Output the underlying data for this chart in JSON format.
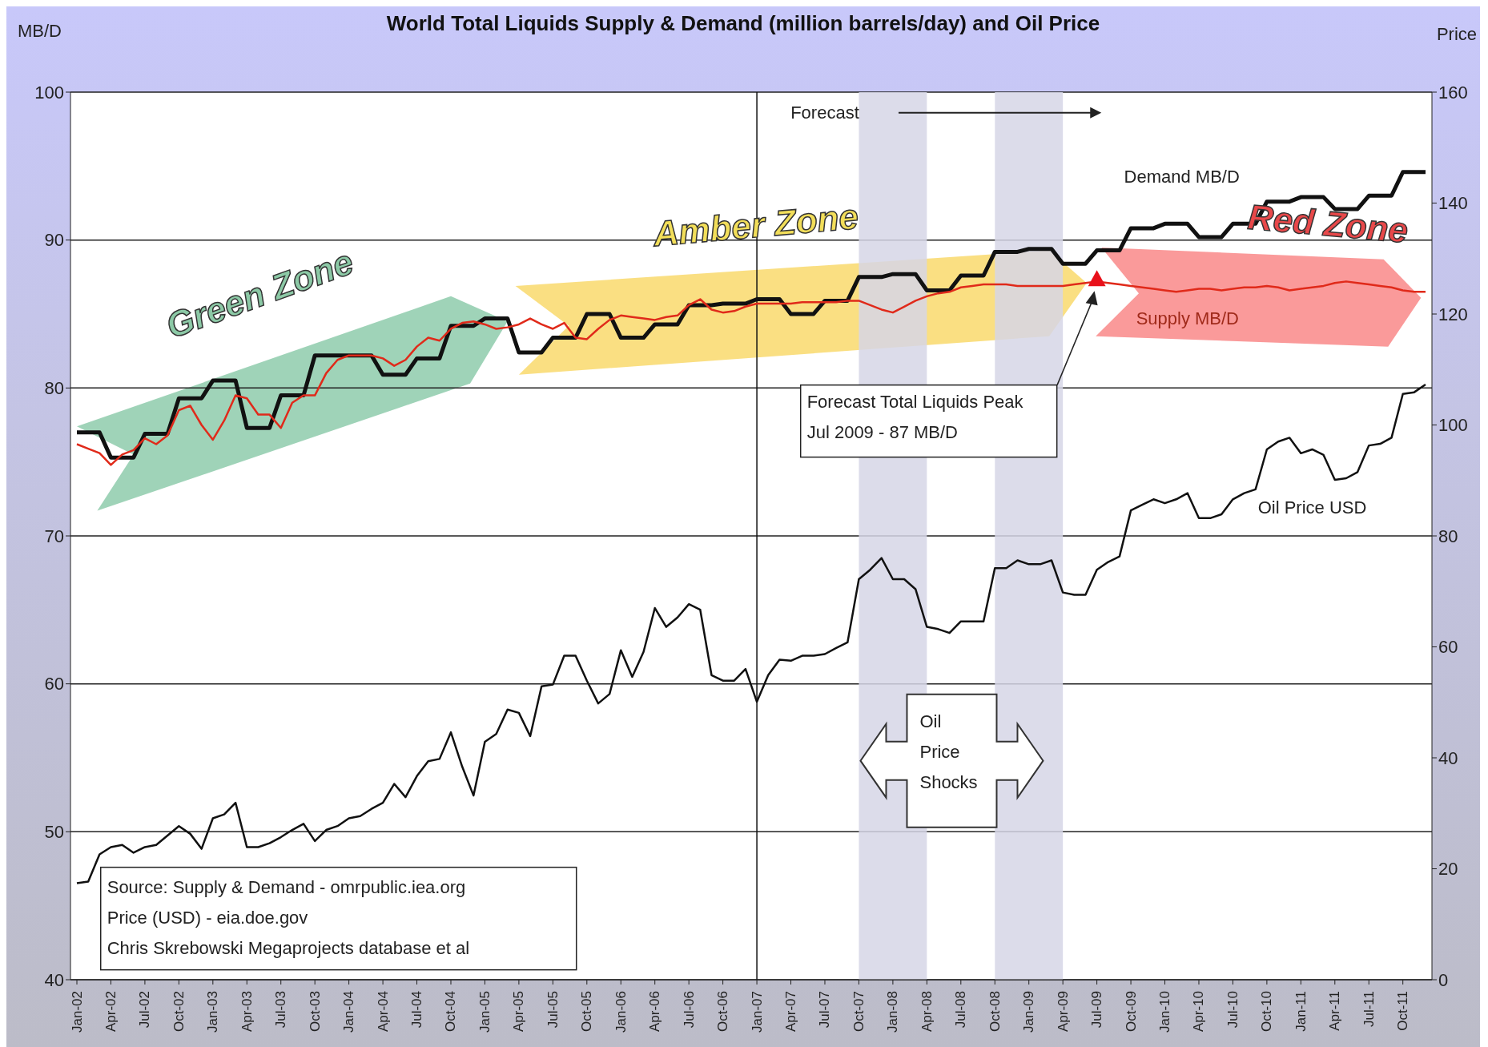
{
  "chart_data": {
    "type": "line",
    "title": "World Total Liquids Supply & Demand (million barrels/day) and Oil Price",
    "ylabel": "MB/D",
    "y2label": "Price",
    "categories": [
      "Jan-02",
      null,
      null,
      "Apr-02",
      null,
      null,
      "Jul-02",
      null,
      null,
      "Oct-02",
      null,
      null,
      "Jan-03",
      null,
      null,
      "Apr-03",
      null,
      null,
      "Jul-03",
      null,
      null,
      "Oct-03",
      null,
      null,
      "Jan-04",
      null,
      null,
      "Apr-04",
      null,
      null,
      "Jul-04",
      null,
      null,
      "Oct-04",
      null,
      null,
      "Jan-05",
      null,
      null,
      "Apr-05",
      null,
      null,
      "Jul-05",
      null,
      null,
      "Oct-05",
      null,
      null,
      "Jan-06",
      null,
      null,
      "Apr-06",
      null,
      null,
      "Jul-06",
      null,
      null,
      "Oct-06",
      null,
      null,
      "Jan-07",
      null,
      null,
      "Apr-07",
      null,
      null,
      "Jul-07",
      null,
      null,
      "Oct-07",
      null,
      null,
      "Jan-08",
      null,
      null,
      "Apr-08",
      null,
      null,
      "Jul-08",
      null,
      null,
      "Oct-08",
      null,
      null,
      "Jan-09",
      null,
      null,
      "Apr-09",
      null,
      null,
      "Jul-09",
      null,
      null,
      "Oct-09",
      null,
      null,
      "Jan-10",
      null,
      null,
      "Apr-10",
      null,
      null,
      "Jul-10",
      null,
      null,
      "Oct-10",
      null,
      null,
      "Jan-11",
      null,
      null,
      "Apr-11",
      null,
      null,
      "Jul-11",
      null,
      null,
      "Oct-11",
      null,
      null
    ],
    "series": [
      {
        "name": "Demand MB/D",
        "color": "#111111",
        "values": [
          77.0,
          77.0,
          77.0,
          75.3,
          75.3,
          75.3,
          76.9,
          76.9,
          76.9,
          79.3,
          79.3,
          79.3,
          80.5,
          80.5,
          80.5,
          77.3,
          77.3,
          77.3,
          79.5,
          79.5,
          79.5,
          82.2,
          82.2,
          82.2,
          82.2,
          82.2,
          82.2,
          80.9,
          80.9,
          80.9,
          82.0,
          82.0,
          82.0,
          84.2,
          84.2,
          84.2,
          84.7,
          84.7,
          84.7,
          82.4,
          82.4,
          82.4,
          83.4,
          83.4,
          83.4,
          85.0,
          85.0,
          85.0,
          83.4,
          83.4,
          83.4,
          84.3,
          84.3,
          84.3,
          85.6,
          85.6,
          85.6,
          85.7,
          85.7,
          85.7,
          86.0,
          86.0,
          86.0,
          85.0,
          85.0,
          85.0,
          85.9,
          85.9,
          85.9,
          87.5,
          87.5,
          87.5,
          87.7,
          87.7,
          87.7,
          86.6,
          86.6,
          86.6,
          87.6,
          87.6,
          87.6,
          89.2,
          89.2,
          89.2,
          89.4,
          89.4,
          89.4,
          88.4,
          88.4,
          88.4,
          89.3,
          89.3,
          89.3,
          90.8,
          90.8,
          90.8,
          91.1,
          91.1,
          91.1,
          90.2,
          90.2,
          90.2,
          91.1,
          91.1,
          91.1,
          92.6,
          92.6,
          92.6,
          92.9,
          92.9,
          92.9,
          92.1,
          92.1,
          92.1,
          93.0,
          93.0,
          93.0,
          94.6,
          94.6,
          94.6
        ]
      },
      {
        "name": "Supply MB/D",
        "color": "#e02a1a",
        "values": [
          76.2,
          75.9,
          75.6,
          74.8,
          75.5,
          75.8,
          76.6,
          76.2,
          76.8,
          78.5,
          78.8,
          77.5,
          76.5,
          77.8,
          79.5,
          79.3,
          78.2,
          78.2,
          77.3,
          79.0,
          79.5,
          79.5,
          81.0,
          81.9,
          82.2,
          82.2,
          82.2,
          82.0,
          81.5,
          81.9,
          82.8,
          83.4,
          83.2,
          84.0,
          84.4,
          84.5,
          84.3,
          84.0,
          84.1,
          84.3,
          84.7,
          84.3,
          84.0,
          84.4,
          83.4,
          83.3,
          84.0,
          84.6,
          84.9,
          84.8,
          84.7,
          84.6,
          84.8,
          84.9,
          85.6,
          86.0,
          85.3,
          85.1,
          85.2,
          85.5,
          85.7,
          85.7,
          85.7,
          85.7,
          85.8,
          85.8,
          85.8,
          85.8,
          85.9,
          85.9,
          85.6,
          85.3,
          85.1,
          85.5,
          85.9,
          86.2,
          86.4,
          86.5,
          86.8,
          86.9,
          87.0,
          87.0,
          87.0,
          86.9,
          86.9,
          86.9,
          86.9,
          86.9,
          87.0,
          87.1,
          87.2,
          87.1,
          87.0,
          86.9,
          86.8,
          86.7,
          86.6,
          86.5,
          86.6,
          86.7,
          86.7,
          86.6,
          86.7,
          86.8,
          86.8,
          86.9,
          86.8,
          86.6,
          86.7,
          86.8,
          86.9,
          87.1,
          87.2,
          87.1,
          87.0,
          86.9,
          86.8,
          86.6,
          86.5,
          86.5
        ]
      },
      {
        "name": "Oil Price USD",
        "color": "#111111",
        "axis": "y2",
        "values": [
          17.4,
          17.7,
          22.6,
          23.9,
          24.3,
          22.9,
          23.9,
          24.3,
          26.0,
          27.7,
          26.3,
          23.6,
          29.1,
          29.8,
          31.9,
          23.9,
          23.9,
          24.6,
          25.7,
          27.0,
          28.1,
          25.0,
          27.0,
          27.7,
          29.1,
          29.5,
          30.8,
          31.9,
          35.3,
          32.9,
          36.7,
          39.4,
          39.8,
          44.6,
          38.4,
          33.2,
          42.9,
          44.3,
          48.7,
          48.1,
          43.9,
          52.9,
          53.2,
          58.4,
          58.4,
          53.9,
          49.8,
          51.5,
          59.4,
          54.6,
          59.1,
          67.0,
          63.6,
          65.3,
          67.7,
          66.7,
          54.9,
          53.9,
          53.9,
          56.0,
          50.1,
          54.9,
          57.7,
          57.5,
          58.4,
          58.4,
          58.7,
          59.8,
          60.8,
          72.2,
          73.9,
          76.0,
          72.2,
          72.2,
          70.4,
          63.6,
          63.2,
          62.5,
          64.6,
          64.6,
          64.6,
          74.2,
          74.2,
          75.6,
          74.9,
          74.9,
          75.6,
          69.8,
          69.4,
          69.4,
          73.9,
          75.3,
          76.3,
          84.6,
          85.6,
          86.6,
          85.9,
          86.6,
          87.7,
          83.2,
          83.2,
          83.9,
          86.6,
          87.7,
          88.4,
          95.6,
          97.0,
          97.7,
          94.9,
          95.6,
          94.6,
          90.1,
          90.4,
          91.5,
          96.3,
          96.6,
          97.7,
          105.6,
          105.9,
          107.3
        ]
      }
    ],
    "ylim": [
      40,
      100
    ],
    "yticks": [
      40,
      50,
      60,
      70,
      80,
      90,
      100
    ],
    "y2lim": [
      0,
      160
    ],
    "y2ticks": [
      0,
      20,
      40,
      60,
      80,
      100,
      120,
      140,
      160
    ],
    "grid": "y",
    "marker": "none",
    "ref_lines": [
      {
        "axis": "x",
        "value": "Jan-07",
        "color": "#111111"
      }
    ],
    "bands": [
      {
        "axis": "x",
        "from": "Oct-07",
        "to": "Apr-08",
        "color": "#d6d6e6"
      },
      {
        "axis": "x",
        "from": "Oct-08",
        "to": "Apr-09",
        "color": "#d6d6e6"
      }
    ],
    "annotations": [
      "Green Zone",
      "Amber Zone",
      "Red Zone",
      "Forecast",
      "Forecast Total Liquids Peak\nJul 2009 - 87 MB/D",
      "Oil\nPrice\nShocks",
      "Source: Supply & Demand - omrpublic.iea.org\nPrice (USD) - eia.doe.gov\nChris Skrebowski Megaprojects database et al"
    ]
  }
}
